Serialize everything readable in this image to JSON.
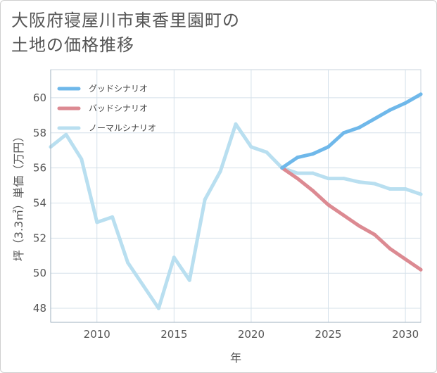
{
  "title_line1": "大阪府寝屋川市東香里園町の",
  "title_line2": "土地の価格推移",
  "chart_data": {
    "type": "line",
    "title": "大阪府寝屋川市東香里園町の土地の価格推移",
    "xlabel": "年",
    "ylabel": "坪（3.3㎡）単価（万円）",
    "xlim": [
      2007,
      2031
    ],
    "ylim": [
      47.2,
      61.6
    ],
    "grid": true,
    "x_ticks": [
      2010,
      2015,
      2020,
      2025,
      2030
    ],
    "y_ticks": [
      48,
      50,
      52,
      54,
      56,
      58,
      60
    ],
    "legend_position": "top-left",
    "series": [
      {
        "name": "グッドシナリオ",
        "color": "#6fb8ea",
        "x": [
          2022,
          2023,
          2024,
          2025,
          2026,
          2027,
          2028,
          2029,
          2030,
          2031
        ],
        "values": [
          56.0,
          56.6,
          56.8,
          57.2,
          58.0,
          58.3,
          58.8,
          59.3,
          59.7,
          60.2
        ]
      },
      {
        "name": "バッドシナリオ",
        "color": "#dc8a92",
        "x": [
          2022,
          2023,
          2024,
          2025,
          2026,
          2027,
          2028,
          2029,
          2030,
          2031
        ],
        "values": [
          56.0,
          55.4,
          54.7,
          53.9,
          53.3,
          52.7,
          52.2,
          51.4,
          50.8,
          50.2
        ]
      },
      {
        "name": "ノーマルシナリオ",
        "color": "#b9dff0",
        "x": [
          2007,
          2008,
          2009,
          2010,
          2011,
          2012,
          2013,
          2014,
          2015,
          2016,
          2017,
          2018,
          2019,
          2020,
          2021,
          2022,
          2023,
          2024,
          2025,
          2026,
          2027,
          2028,
          2029,
          2030,
          2031
        ],
        "values": [
          57.2,
          57.9,
          56.5,
          52.9,
          53.2,
          50.6,
          49.3,
          48.0,
          50.9,
          49.6,
          54.2,
          55.8,
          58.5,
          57.2,
          56.9,
          56.0,
          55.7,
          55.7,
          55.4,
          55.4,
          55.2,
          55.1,
          54.8,
          54.8,
          54.5
        ]
      }
    ]
  }
}
